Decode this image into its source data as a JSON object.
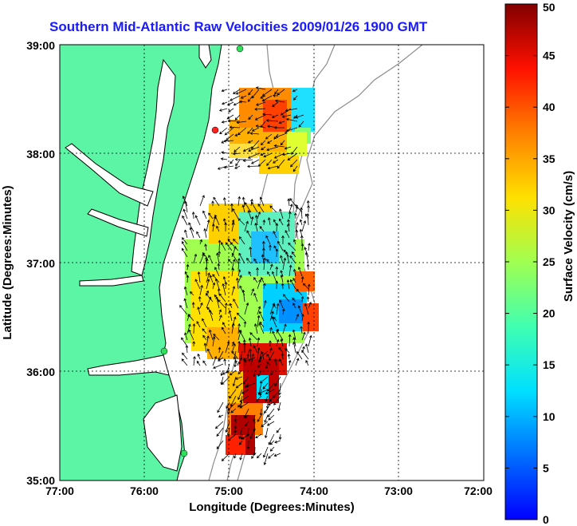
{
  "title": "Southern Mid-Atlantic Raw Velocities 2009/01/26 1900 GMT",
  "xlabel": "Longitude (Degrees:Minutes)",
  "ylabel": "Latitude (Degrees:Minutes)",
  "colorbar_label": "Surface Velocity (cm/s)",
  "x_ticks": [
    "77:00",
    "76:00",
    "75:00",
    "74:00",
    "73:00",
    "72:00"
  ],
  "y_ticks": [
    "39:00",
    "38:00",
    "37:00",
    "36:00",
    "35:00"
  ],
  "colorbar_ticks": [
    "0",
    "5",
    "10",
    "15",
    "20",
    "25",
    "30",
    "35",
    "40",
    "45",
    "50"
  ],
  "colors": {
    "land": "#5cf5a6",
    "water": "#ffffff",
    "coast": "#000000",
    "bathymetry": "#8c8c8c",
    "station": "#2ee05a",
    "station_alt": "#ff2020",
    "title": "#1a1aff"
  },
  "chart_data": {
    "type": "heatmap",
    "xlim": [
      -77,
      -72
    ],
    "ylim": [
      35,
      39
    ],
    "clim": [
      0,
      50
    ]
  }
}
